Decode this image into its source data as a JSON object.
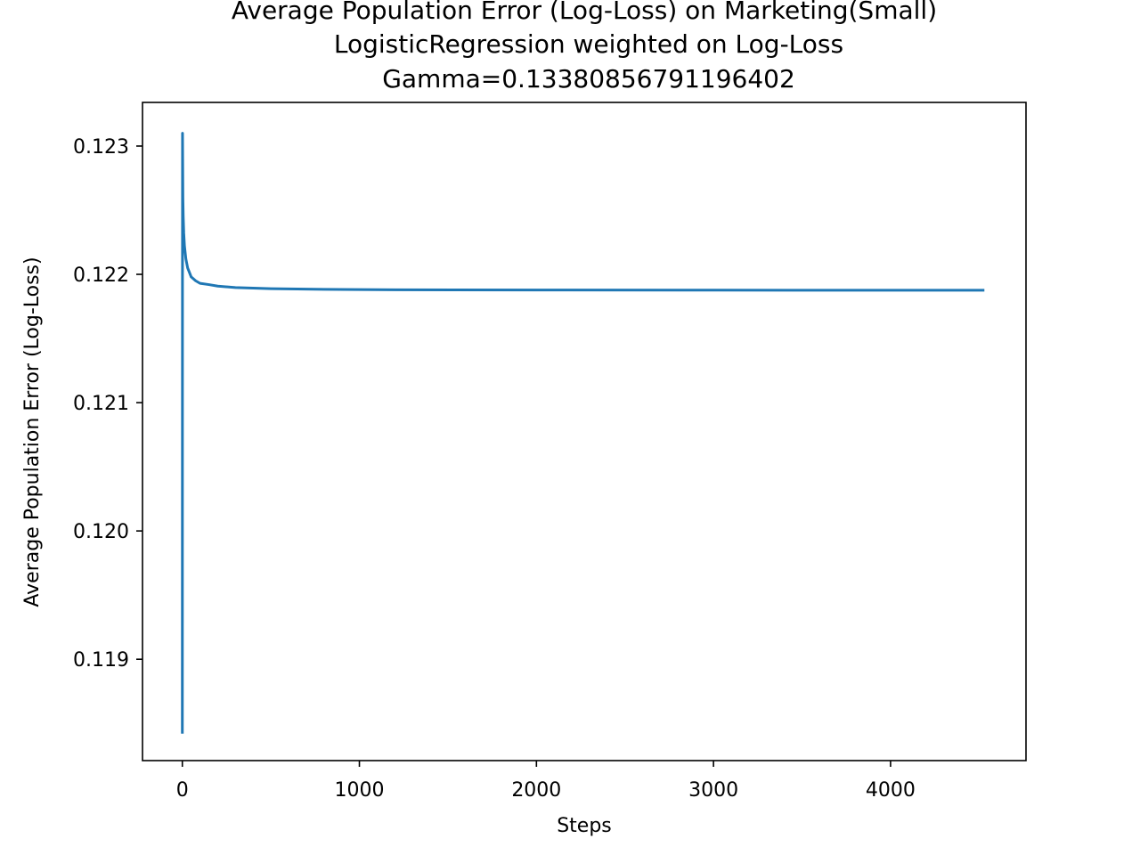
{
  "chart_data": {
    "type": "line",
    "title_lines": [
      "Average Population Error (Log-Loss) on Marketing(Small)",
      "LogisticRegression weighted on Log-Loss",
      "Gamma=0.13380856791196402"
    ],
    "xlabel": "Steps",
    "ylabel": "Average Population Error (Log-Loss)",
    "xlim": [
      -225,
      4765
    ],
    "ylim": [
      0.11821,
      0.12334
    ],
    "xticks": [
      0,
      1000,
      2000,
      3000,
      4000
    ],
    "xtick_labels": [
      "0",
      "1000",
      "2000",
      "3000",
      "4000"
    ],
    "yticks": [
      0.119,
      0.12,
      0.121,
      0.122,
      0.123
    ],
    "ytick_labels": [
      "0.119",
      "0.120",
      "0.121",
      "0.122",
      "0.123"
    ],
    "grid": false,
    "line_color": "#1f77b4",
    "series": [
      {
        "x": [
          0,
          1,
          2,
          3,
          5,
          8,
          12,
          20,
          30,
          50,
          75,
          100,
          150,
          200,
          300,
          500,
          800,
          1200,
          2000,
          3000,
          4000,
          4530
        ],
        "y": [
          0.11842,
          0.1231,
          0.12285,
          0.1226,
          0.12245,
          0.12232,
          0.12222,
          0.12212,
          0.12205,
          0.12198,
          0.12195,
          0.12193,
          0.12192,
          0.121908,
          0.121897,
          0.121888,
          0.121883,
          0.12188,
          0.121878,
          0.121877,
          0.121876,
          0.121876
        ]
      }
    ]
  }
}
